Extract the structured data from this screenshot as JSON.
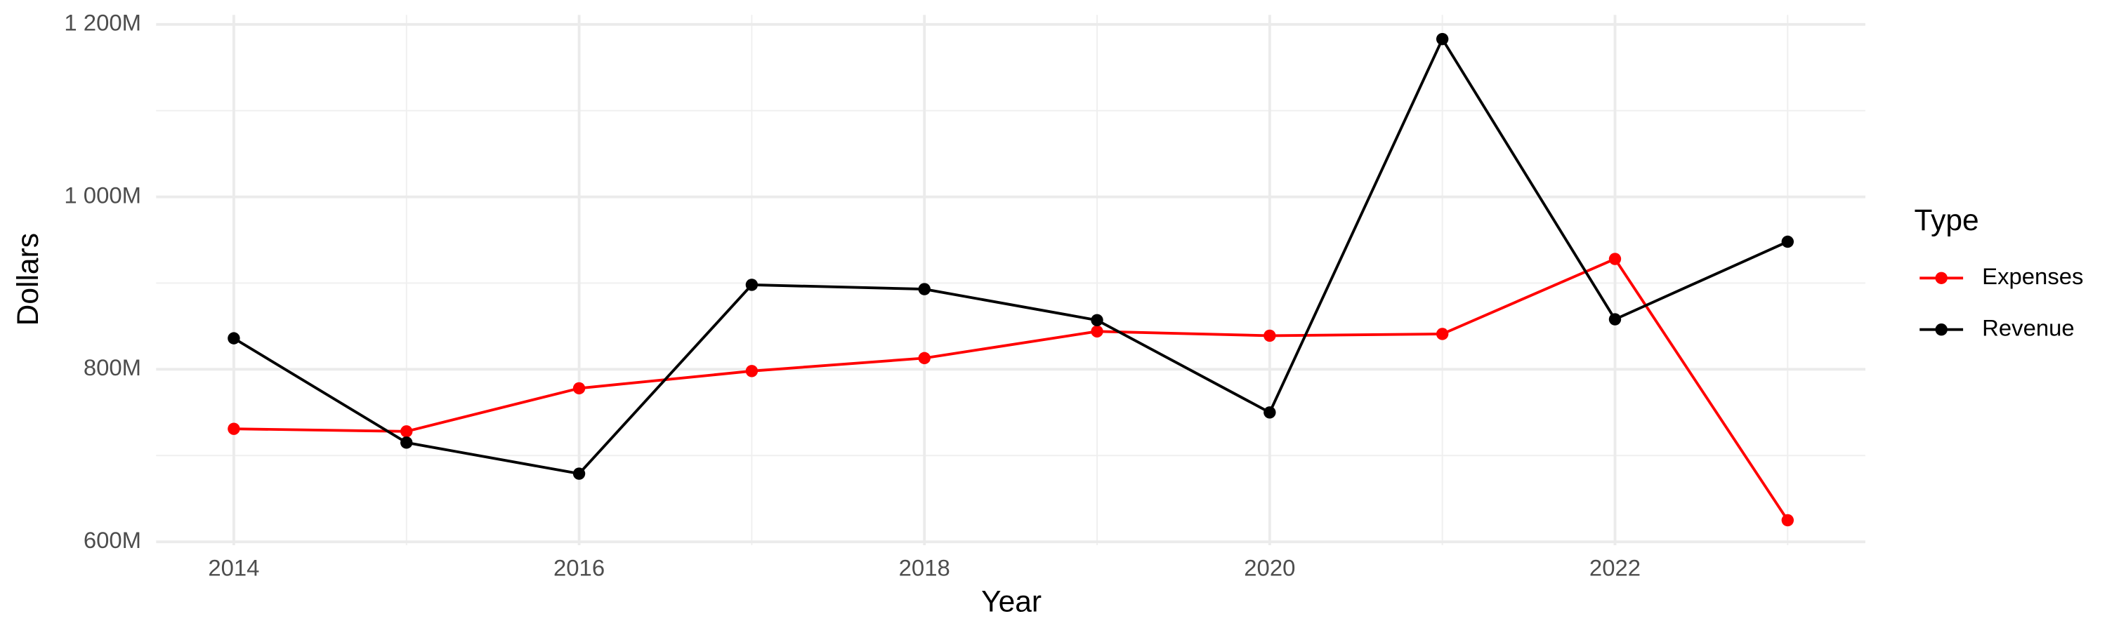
{
  "chart_data": {
    "type": "line",
    "x_label": "Year",
    "y_label": "Dollars",
    "legend_title": "Type",
    "x": [
      2014,
      2015,
      2016,
      2017,
      2018,
      2019,
      2020,
      2021,
      2022,
      2023
    ],
    "series": [
      {
        "name": "Expenses",
        "color": "#ff0000",
        "values": [
          731,
          728,
          778,
          798,
          813,
          844,
          839,
          841,
          928,
          625
        ]
      },
      {
        "name": "Revenue",
        "color": "#000000",
        "values": [
          836,
          715,
          679,
          898,
          893,
          857,
          750,
          1183,
          858,
          948
        ]
      }
    ],
    "xlim": [
      2013.55,
      2023.45
    ],
    "xticks": [
      2014,
      2016,
      2018,
      2020,
      2022
    ],
    "x_minor_ticks": [
      2015,
      2017,
      2019,
      2021,
      2023
    ],
    "ylim": [
      596,
      1211
    ],
    "yticks": [
      {
        "value": 600,
        "label": "600M"
      },
      {
        "value": 800,
        "label": "800M"
      },
      {
        "value": 1000,
        "label": "1 000M"
      },
      {
        "value": 1200,
        "label": "1 200M"
      }
    ],
    "y_minor_ticks": [
      700,
      900,
      1100
    ],
    "grid": true,
    "legend_position": "right"
  }
}
